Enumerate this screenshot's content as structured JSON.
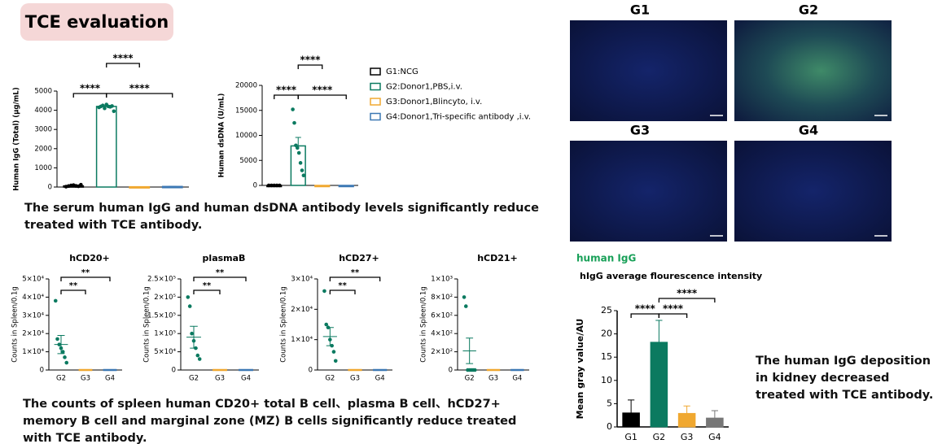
{
  "header": {
    "title": "TCE evaluation"
  },
  "chart_data": [
    {
      "type": "bar",
      "ylabel": "Human IgG (Total) (μg/mL)",
      "categories": [
        null,
        null,
        null,
        null
      ],
      "values": [
        60,
        4200,
        15,
        30
      ],
      "errors": [
        30,
        40,
        5,
        10
      ],
      "points": [
        [
          20,
          50,
          80,
          100,
          60,
          40,
          120
        ],
        [
          4150,
          4200,
          4250,
          4100,
          4300,
          4200,
          4180,
          4220,
          3950
        ],
        [],
        []
      ],
      "colors": [
        "#000000",
        "#0b7a60",
        "#f0a830",
        "#3c78b4"
      ],
      "filled": false,
      "legend": [
        "G1:NCG",
        "G2:Donor1,PBS,i.v.",
        "G3:Donor1,Blincyto, i.v.",
        "G4:Donor1,Tri-specific antibody ,i.v."
      ],
      "ylim": [
        0,
        5000
      ],
      "yticks": [
        0,
        1000,
        2000,
        3000,
        4000,
        5000
      ],
      "annotations": [
        "****",
        "****",
        "****"
      ]
    },
    {
      "type": "bar",
      "ylabel": "Human dsDNA (U/mL)",
      "categories": [
        null,
        null,
        null,
        null
      ],
      "values": [
        0,
        7900,
        0,
        0
      ],
      "errors": [
        0,
        1700,
        0,
        0
      ],
      "points": [
        [
          0,
          0,
          0,
          0,
          0
        ],
        [
          15200,
          12500,
          8000,
          7500,
          6500,
          4500,
          3000,
          2000
        ],
        [],
        []
      ],
      "colors": [
        "#000000",
        "#0b7a60",
        "#f0a830",
        "#3c78b4"
      ],
      "filled": false,
      "ylim": [
        0,
        20000
      ],
      "yticks": [
        0,
        5000,
        10000,
        15000,
        20000
      ],
      "annotations": [
        "****",
        "****",
        "****"
      ]
    },
    {
      "type": "dot",
      "title": "hCD20+",
      "ylabel": "Counts in Spleen/0.1g",
      "categories": [
        "G2",
        "G3",
        "G4"
      ],
      "values": [
        14000,
        0,
        0
      ],
      "errors": [
        5000,
        0,
        0
      ],
      "points": [
        [
          38000,
          17000,
          14000,
          12000,
          10000,
          7000,
          4000
        ],
        [],
        []
      ],
      "colors": [
        "#0b7a60",
        "#f0a830",
        "#3c78b4"
      ],
      "ylim": [
        0,
        50000
      ],
      "yticks": [
        0,
        {
          "value": 10000,
          "label": "1×10⁴"
        },
        {
          "value": 20000,
          "label": "2×10⁴"
        },
        {
          "value": 30000,
          "label": "3×10⁴"
        },
        {
          "value": 40000,
          "label": "4×10⁴"
        },
        {
          "value": 50000,
          "label": "5×10⁴"
        }
      ],
      "annotations": [
        "**",
        "**"
      ]
    },
    {
      "type": "dot",
      "title": "plasmaB",
      "ylabel": "Counts in Spleen/0.1g",
      "categories": [
        "G2",
        "G3",
        "G4"
      ],
      "values": [
        90000,
        0,
        0
      ],
      "errors": [
        30000,
        0,
        0
      ],
      "points": [
        [
          200000,
          175000,
          100000,
          80000,
          60000,
          40000,
          30000
        ],
        [],
        []
      ],
      "colors": [
        "#0b7a60",
        "#f0a830",
        "#3c78b4"
      ],
      "ylim": [
        0,
        250000
      ],
      "yticks": [
        0,
        {
          "value": 50000,
          "label": "5×10⁴"
        },
        {
          "value": 100000,
          "label": "1×10⁵"
        },
        {
          "value": 150000,
          "label": "1.5×10⁵"
        },
        {
          "value": 200000,
          "label": "2×10⁵"
        },
        {
          "value": 250000,
          "label": "2.5×10⁵"
        }
      ],
      "annotations": [
        "**",
        "**"
      ]
    },
    {
      "type": "dot",
      "title": "hCD27+",
      "ylabel": "Counts in Spleen/0.1g",
      "categories": [
        "G2",
        "G3",
        "G4"
      ],
      "values": [
        11000,
        0,
        0
      ],
      "errors": [
        3000,
        0,
        0
      ],
      "points": [
        [
          26000,
          15000,
          14000,
          10000,
          8000,
          6000,
          3000
        ],
        [],
        []
      ],
      "colors": [
        "#0b7a60",
        "#f0a830",
        "#3c78b4"
      ],
      "ylim": [
        0,
        30000
      ],
      "yticks": [
        0,
        {
          "value": 10000,
          "label": "1×10⁴"
        },
        {
          "value": 20000,
          "label": "2×10⁴"
        },
        {
          "value": 30000,
          "label": "3×10⁴"
        }
      ],
      "annotations": [
        "**",
        "**"
      ]
    },
    {
      "type": "dot",
      "title": "hCD21+",
      "ylabel": "Counts in Spleen/0.1g",
      "categories": [
        "G2",
        "G3",
        "G4"
      ],
      "values": [
        210,
        0,
        0
      ],
      "errors": [
        140,
        0,
        0
      ],
      "points": [
        [
          800,
          700,
          0,
          0,
          0,
          0,
          0
        ],
        [],
        []
      ],
      "colors": [
        "#0b7a60",
        "#f0a830",
        "#3c78b4"
      ],
      "ylim": [
        0,
        1000
      ],
      "yticks": [
        0,
        {
          "value": 200,
          "label": "2×10²"
        },
        {
          "value": 400,
          "label": "4×10²"
        },
        {
          "value": 600,
          "label": "6×10²"
        },
        {
          "value": 800,
          "label": "8×10²"
        },
        {
          "value": 1000,
          "label": "1×10³"
        }
      ],
      "annotations": []
    },
    {
      "type": "bar",
      "title": "hIgG average flourescence intensity",
      "ylabel": "Mean gray value/AU",
      "categories": [
        "G1",
        "G2",
        "G3",
        "G4"
      ],
      "values": [
        3,
        18.2,
        2.9,
        1.9
      ],
      "errors": [
        2.8,
        4.7,
        1.6,
        1.6
      ],
      "points": [
        [],
        [],
        [],
        []
      ],
      "colors": [
        "#000000",
        "#0b7a60",
        "#f0a830",
        "#777777"
      ],
      "filled": true,
      "ylim": [
        0,
        25
      ],
      "yticks": [
        0,
        5,
        10,
        15,
        20,
        25
      ],
      "annotations": [
        "****",
        "****",
        "****"
      ]
    }
  ],
  "captions": [
    "The serum human IgG and human dsDNA antibody levels significantly reduce treated with TCE antibody.",
    "The counts of spleen human CD20+ total B cell、plasma B cell、hCD27+ memory B cell and marginal zone (MZ) B cells significantly reduce treated with TCE antibody."
  ],
  "images": {
    "labels": [
      "G1",
      "G2",
      "G3",
      "G4"
    ]
  },
  "panel": {
    "label": "human IgG"
  },
  "side_text": "The human IgG deposition in kidney decreased treated with TCE antibody."
}
